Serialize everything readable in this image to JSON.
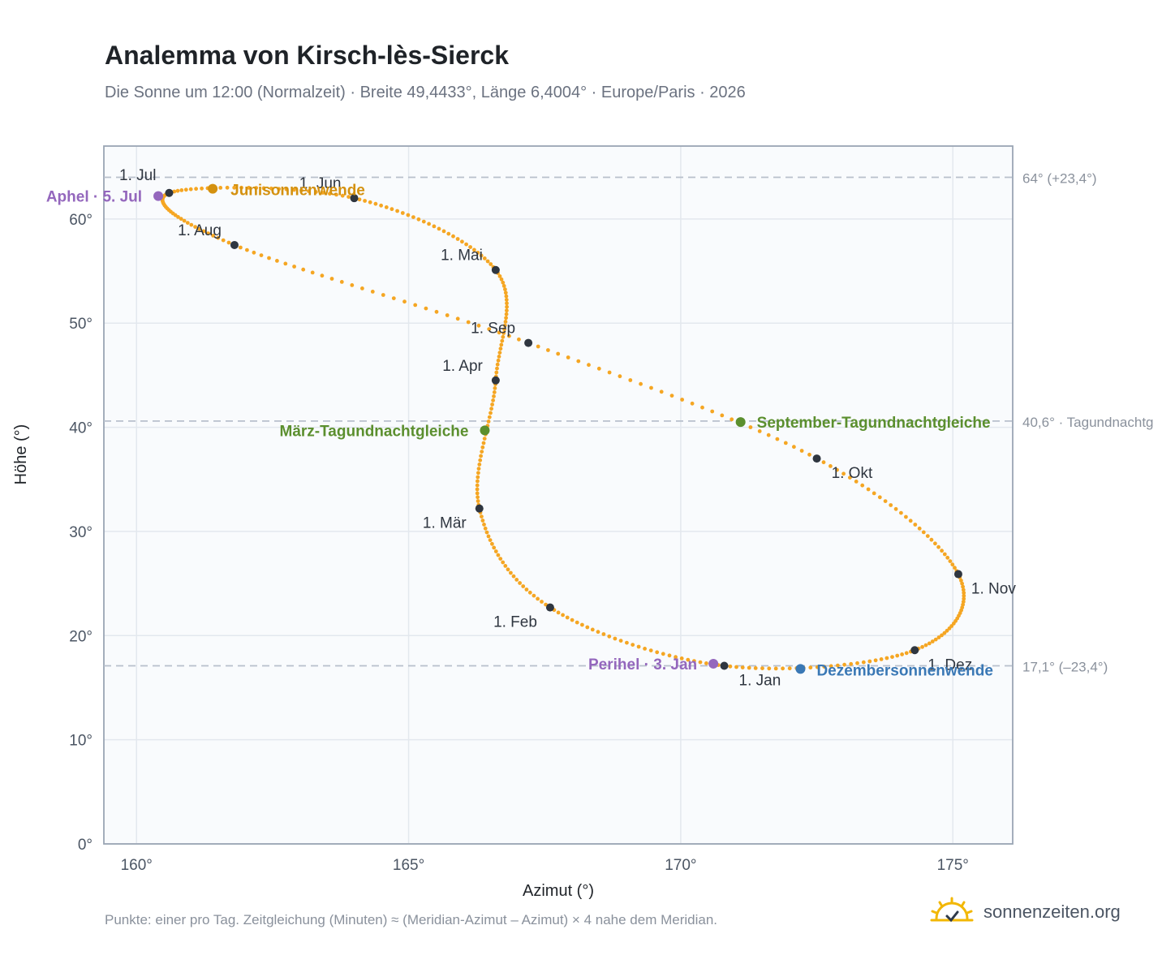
{
  "title": "Analemma von Kirsch-lès-Sierck",
  "subtitle": "Die Sonne um 12:00 (Normalzeit) · Breite 49,4433°, Länge 6,4004° · Europe/Paris · 2026",
  "footnote": "Punkte: einer pro Tag. Zeitgleichung (Minuten) ≈ (Meridian-Azimut – Azimut) × 4 nahe dem Meridian.",
  "brand": {
    "name": "sonnenzeiten.org",
    "icon": "sun-logo-icon"
  },
  "colors": {
    "curve": "#f5a623",
    "month_dot": "#2f3640",
    "solstice_june": "#d4910f",
    "equinox": "#5b8f2e",
    "solstice_dec": "#3a78b5",
    "aphel_perihel": "#9467bd",
    "reference_line": "#b8c0cc",
    "plot_bg": "#f9fbfd"
  },
  "chart_data": {
    "type": "scatter",
    "xlabel": "Azimut (°)",
    "ylabel": "Höhe (°)",
    "xlim": [
      159.4,
      176.1
    ],
    "ylim": [
      0,
      67
    ],
    "x_ticks": [
      "160°",
      "165°",
      "170°",
      "175°"
    ],
    "x_tick_values": [
      160,
      165,
      170,
      175
    ],
    "y_ticks": [
      "0°",
      "10°",
      "20°",
      "30°",
      "40°",
      "50°",
      "60°"
    ],
    "y_tick_values": [
      0,
      10,
      20,
      30,
      40,
      50,
      60
    ],
    "grid": true,
    "key_points": [
      {
        "label": "1. Jan",
        "azimuth": 170.8,
        "altitude": 17.1
      },
      {
        "label": "1. Feb",
        "azimuth": 167.6,
        "altitude": 22.7
      },
      {
        "label": "1. Mär",
        "azimuth": 166.3,
        "altitude": 32.2
      },
      {
        "label": "1. Apr",
        "azimuth": 166.6,
        "altitude": 44.5
      },
      {
        "label": "1. Mai",
        "azimuth": 166.6,
        "altitude": 55.1
      },
      {
        "label": "1. Jun",
        "azimuth": 164.0,
        "altitude": 62.0
      },
      {
        "label": "1. Jul",
        "azimuth": 160.6,
        "altitude": 62.5
      },
      {
        "label": "1. Aug",
        "azimuth": 161.8,
        "altitude": 57.5
      },
      {
        "label": "1. Sep",
        "azimuth": 167.2,
        "altitude": 48.1
      },
      {
        "label": "1. Okt",
        "azimuth": 172.5,
        "altitude": 37.0
      },
      {
        "label": "1. Nov",
        "azimuth": 175.1,
        "altitude": 25.9
      },
      {
        "label": "1. Dez",
        "azimuth": 174.3,
        "altitude": 18.6
      }
    ],
    "events": [
      {
        "label": "Junisonnenwende",
        "azimuth": 161.4,
        "altitude": 62.9,
        "color_key": "solstice_june"
      },
      {
        "label": "März-Tagundnachtgleiche",
        "azimuth": 166.4,
        "altitude": 39.7,
        "color_key": "equinox"
      },
      {
        "label": "September-Tagundnachtgleiche",
        "azimuth": 171.1,
        "altitude": 40.5,
        "color_key": "equinox"
      },
      {
        "label": "Dezembersonnenwende",
        "azimuth": 172.2,
        "altitude": 16.8,
        "color_key": "solstice_dec"
      },
      {
        "label": "Aphel · 5. Jul",
        "azimuth": 160.4,
        "altitude": 62.2,
        "color_key": "aphel_perihel"
      },
      {
        "label": "Perihel · 3. Jan",
        "azimuth": 170.6,
        "altitude": 17.3,
        "color_key": "aphel_perihel"
      }
    ],
    "reference_lines": [
      {
        "altitude": 64.0,
        "label": "64° (+23,4°)"
      },
      {
        "altitude": 40.6,
        "label": "40,6° · Tagundnachtg"
      },
      {
        "altitude": 17.1,
        "label": "17,1° (–23,4°)"
      }
    ]
  }
}
